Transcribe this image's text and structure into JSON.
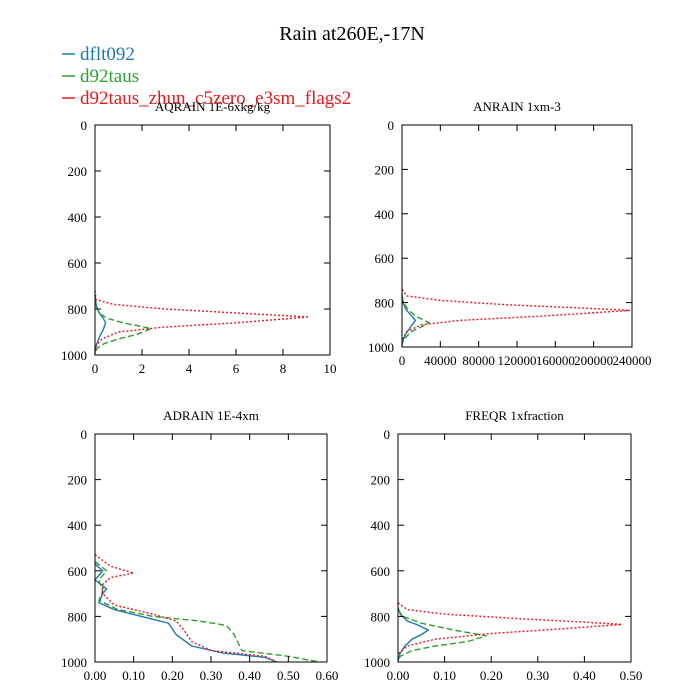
{
  "figure": {
    "title": "Rain at260E,-17N"
  },
  "colors": {
    "dflt092": "#1f77b4",
    "d92taus": "#2ca02c",
    "d92taus_zhun": "#e31a1c"
  },
  "legend": [
    {
      "label": "dflt092",
      "color": "#1f77b4",
      "dash": "solid"
    },
    {
      "label": "d92taus",
      "color": "#2ca02c",
      "dash": "dashed"
    },
    {
      "label": "d92taus_zhun_c5zero_e3sm_flags2",
      "color": "#e31a1c",
      "dash": "dotted"
    }
  ],
  "chart_data": [
    {
      "type": "line",
      "title": "AQRAIN 1E-6xkg/kg",
      "xlim": [
        0,
        10
      ],
      "ylim": [
        1000,
        0
      ],
      "x_tick_labels": [
        "0",
        "2",
        "4",
        "6",
        "8",
        "10"
      ],
      "y_tick_labels": [
        "0",
        "200",
        "400",
        "600",
        "800",
        "1000"
      ],
      "grid": false,
      "series": [
        {
          "name": "dflt092",
          "points": [
            [
              0,
              740
            ],
            [
              0.05,
              780
            ],
            [
              0.1,
              800
            ],
            [
              0.2,
              820
            ],
            [
              0.35,
              840
            ],
            [
              0.45,
              860
            ],
            [
              0.35,
              890
            ],
            [
              0.2,
              920
            ],
            [
              0.08,
              950
            ],
            [
              0,
              980
            ],
            [
              0,
              1000
            ]
          ]
        },
        {
          "name": "d92taus",
          "points": [
            [
              0,
              750
            ],
            [
              0.05,
              790
            ],
            [
              0.2,
              820
            ],
            [
              0.5,
              840
            ],
            [
              1.2,
              860
            ],
            [
              2.4,
              885
            ],
            [
              1.8,
              910
            ],
            [
              1.0,
              930
            ],
            [
              0.4,
              950
            ],
            [
              0.1,
              970
            ],
            [
              0,
              990
            ]
          ]
        },
        {
          "name": "d92taus_zhun_c5zero_e3sm_flags2",
          "points": [
            [
              0,
              720
            ],
            [
              0.05,
              760
            ],
            [
              0.8,
              780
            ],
            [
              3.0,
              800
            ],
            [
              6.5,
              820
            ],
            [
              9.1,
              835
            ],
            [
              6.0,
              860
            ],
            [
              2.8,
              880
            ],
            [
              1.0,
              900
            ],
            [
              0.3,
              930
            ],
            [
              0.05,
              960
            ],
            [
              0,
              990
            ]
          ]
        }
      ]
    },
    {
      "type": "line",
      "title": "ANRAIN 1xm-3",
      "xlim": [
        0,
        240000
      ],
      "ylim": [
        1000,
        0
      ],
      "x_tick_labels": [
        "0",
        "40000",
        "80000",
        "120000",
        "160000",
        "200000",
        "240000"
      ],
      "y_tick_labels": [
        "0",
        "200",
        "400",
        "600",
        "800",
        "1000"
      ],
      "grid": false,
      "series": [
        {
          "name": "dflt092",
          "points": [
            [
              0,
              760
            ],
            [
              1000,
              800
            ],
            [
              4000,
              830
            ],
            [
              10000,
              860
            ],
            [
              14000,
              880
            ],
            [
              9000,
              910
            ],
            [
              4000,
              940
            ],
            [
              1000,
              970
            ],
            [
              0,
              995
            ]
          ]
        },
        {
          "name": "d92taus",
          "points": [
            [
              0,
              770
            ],
            [
              1500,
              800
            ],
            [
              6000,
              830
            ],
            [
              14000,
              860
            ],
            [
              28000,
              890
            ],
            [
              20000,
              910
            ],
            [
              10000,
              930
            ],
            [
              3000,
              960
            ],
            [
              0,
              985
            ]
          ]
        },
        {
          "name": "d92taus_zhun_c5zero_e3sm_flags2",
          "points": [
            [
              0,
              740
            ],
            [
              5000,
              770
            ],
            [
              40000,
              790
            ],
            [
              110000,
              810
            ],
            [
              190000,
              825
            ],
            [
              238000,
              835
            ],
            [
              150000,
              860
            ],
            [
              60000,
              880
            ],
            [
              20000,
              900
            ],
            [
              5000,
              930
            ],
            [
              0,
              970
            ]
          ]
        }
      ]
    },
    {
      "type": "line",
      "title": "ADRAIN 1E-4xm",
      "xlim": [
        0,
        0.6
      ],
      "ylim": [
        1000,
        0
      ],
      "x_tick_labels": [
        "0.00",
        "0.10",
        "0.20",
        "0.30",
        "0.40",
        "0.50",
        "0.60"
      ],
      "y_tick_labels": [
        "0",
        "200",
        "400",
        "600",
        "800",
        "1000"
      ],
      "grid": false,
      "series": [
        {
          "name": "dflt092",
          "points": [
            [
              0.0,
              570
            ],
            [
              0.02,
              600
            ],
            [
              0.0,
              640
            ],
            [
              0.03,
              680
            ],
            [
              0.02,
              700
            ],
            [
              0.01,
              740
            ],
            [
              0.05,
              770
            ],
            [
              0.12,
              800
            ],
            [
              0.19,
              830
            ],
            [
              0.21,
              880
            ],
            [
              0.25,
              930
            ],
            [
              0.33,
              960
            ],
            [
              0.44,
              980
            ],
            [
              0.47,
              1000
            ]
          ]
        },
        {
          "name": "d92taus",
          "points": [
            [
              0.0,
              560
            ],
            [
              0.03,
              600
            ],
            [
              0.01,
              640
            ],
            [
              0.02,
              690
            ],
            [
              0.01,
              730
            ],
            [
              0.06,
              770
            ],
            [
              0.15,
              800
            ],
            [
              0.27,
              820
            ],
            [
              0.34,
              840
            ],
            [
              0.36,
              880
            ],
            [
              0.38,
              950
            ],
            [
              0.5,
              975
            ],
            [
              0.58,
              1000
            ]
          ]
        },
        {
          "name": "d92taus_zhun_c5zero_e3sm_flags2",
          "points": [
            [
              0.0,
              530
            ],
            [
              0.04,
              580
            ],
            [
              0.1,
              610
            ],
            [
              0.04,
              630
            ],
            [
              0.02,
              660
            ],
            [
              0.02,
              700
            ],
            [
              0.05,
              750
            ],
            [
              0.15,
              790
            ],
            [
              0.21,
              820
            ],
            [
              0.23,
              860
            ],
            [
              0.25,
              910
            ],
            [
              0.3,
              950
            ],
            [
              0.44,
              975
            ],
            [
              0.47,
              1000
            ]
          ]
        }
      ]
    },
    {
      "type": "line",
      "title": "FREQR 1xfraction",
      "xlim": [
        0,
        0.5
      ],
      "ylim": [
        1000,
        0
      ],
      "x_tick_labels": [
        "0.00",
        "0.10",
        "0.20",
        "0.30",
        "0.40",
        "0.50"
      ],
      "y_tick_labels": [
        "0",
        "200",
        "400",
        "600",
        "800",
        "1000"
      ],
      "grid": false,
      "series": [
        {
          "name": "dflt092",
          "points": [
            [
              0,
              760
            ],
            [
              0.005,
              790
            ],
            [
              0.02,
              820
            ],
            [
              0.045,
              840
            ],
            [
              0.065,
              860
            ],
            [
              0.05,
              880
            ],
            [
              0.03,
              900
            ],
            [
              0.015,
              930
            ],
            [
              0.005,
              960
            ],
            [
              0,
              995
            ]
          ]
        },
        {
          "name": "d92taus",
          "points": [
            [
              0,
              770
            ],
            [
              0.01,
              800
            ],
            [
              0.05,
              830
            ],
            [
              0.12,
              860
            ],
            [
              0.19,
              885
            ],
            [
              0.15,
              910
            ],
            [
              0.08,
              930
            ],
            [
              0.03,
              950
            ],
            [
              0.005,
              975
            ],
            [
              0,
              990
            ]
          ]
        },
        {
          "name": "d92taus_zhun_c5zero_e3sm_flags2",
          "points": [
            [
              0,
              740
            ],
            [
              0.02,
              770
            ],
            [
              0.1,
              790
            ],
            [
              0.26,
              810
            ],
            [
              0.4,
              825
            ],
            [
              0.48,
              835
            ],
            [
              0.35,
              855
            ],
            [
              0.2,
              875
            ],
            [
              0.08,
              900
            ],
            [
              0.02,
              930
            ],
            [
              0,
              965
            ]
          ]
        }
      ]
    }
  ]
}
